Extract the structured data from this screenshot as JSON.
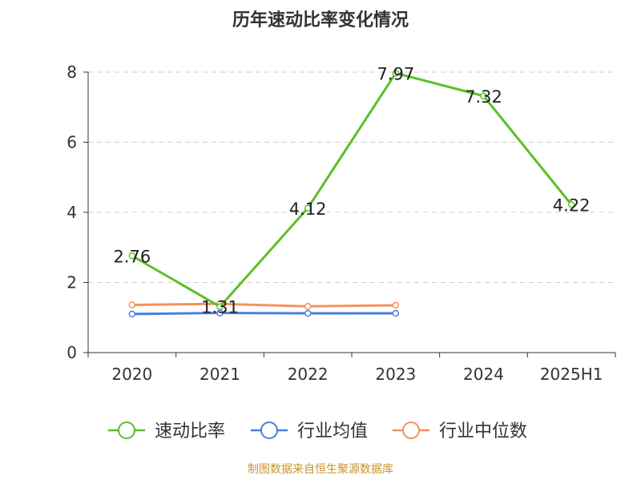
{
  "chart_data": {
    "type": "line",
    "title": "历年速动比率变化情况",
    "categories": [
      "2020",
      "2021",
      "2022",
      "2023",
      "2024",
      "2025H1"
    ],
    "ylim": [
      0,
      8
    ],
    "yticks": [
      0,
      2,
      4,
      6,
      8
    ],
    "grid": true,
    "legend_position": "bottom",
    "series": [
      {
        "name": "速动比率",
        "values": [
          2.76,
          1.31,
          4.12,
          7.97,
          7.32,
          4.22
        ],
        "color": "#5cbf2a",
        "show_labels": true
      },
      {
        "name": "行业均值",
        "values": [
          1.1,
          1.13,
          1.12,
          1.12,
          null,
          null
        ],
        "color": "#4a7fe0",
        "show_labels": false
      },
      {
        "name": "行业中位数",
        "values": [
          1.36,
          1.39,
          1.32,
          1.35,
          null,
          null
        ],
        "color": "#f4925c",
        "show_labels": false
      }
    ]
  },
  "footer": {
    "source": "制图数据来自恒生聚源数据库"
  }
}
